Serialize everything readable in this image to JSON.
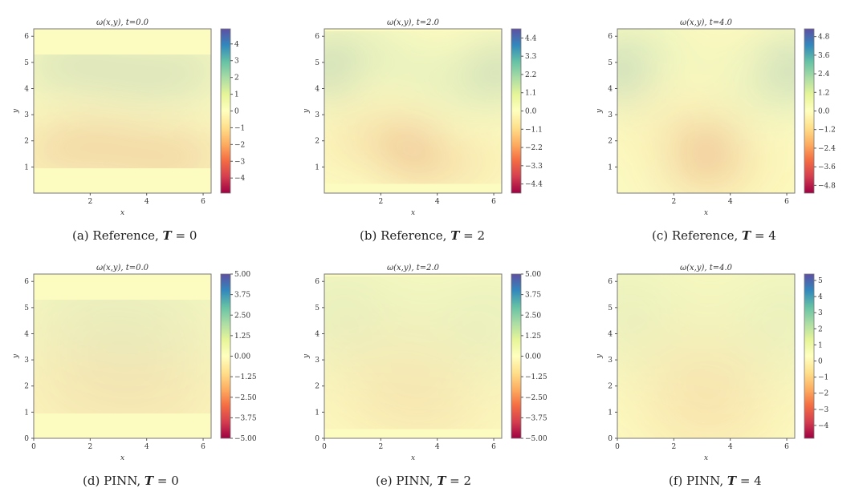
{
  "chart_data": [
    {
      "id": "a",
      "type": "heatmap",
      "title": "ω(x,y),   t=0.0",
      "xlabel": "x",
      "ylabel": "y",
      "xticks": [
        "2",
        "4",
        "6"
      ],
      "yticks": [
        "1",
        "2",
        "3",
        "4",
        "5",
        "6"
      ],
      "xlim": [
        0,
        6.283
      ],
      "ylim": [
        0,
        6.283
      ],
      "colorbar": {
        "range": [
          -4.9,
          4.9
        ],
        "ticks": [
          "4",
          "3",
          "2",
          "1",
          "0",
          "−1",
          "−2",
          "−3",
          "−4"
        ],
        "values": [
          4,
          3,
          2,
          1,
          0,
          -1,
          -2,
          -3,
          -4
        ]
      },
      "caption": {
        "prefix": "(a) Reference, ",
        "var": "T",
        "suffix": " = 0"
      },
      "time": 0
    },
    {
      "id": "b",
      "type": "heatmap",
      "title": "ω(x,y),   t=2.0",
      "xlabel": "x",
      "ylabel": "y",
      "xticks": [
        "2",
        "4",
        "6"
      ],
      "yticks": [
        "1",
        "2",
        "3",
        "4",
        "5",
        "6"
      ],
      "xlim": [
        0,
        6.283
      ],
      "ylim": [
        0,
        6.283
      ],
      "colorbar": {
        "range": [
          -4.95,
          4.95
        ],
        "ticks": [
          "4.4",
          "3.3",
          "2.2",
          "1.1",
          "0.0",
          "−1.1",
          "−2.2",
          "−3.3",
          "−4.4"
        ],
        "values": [
          4.4,
          3.3,
          2.2,
          1.1,
          0,
          -1.1,
          -2.2,
          -3.3,
          -4.4
        ]
      },
      "caption": {
        "prefix": "(b) Reference, ",
        "var": "T",
        "suffix": " = 2"
      },
      "time": 2
    },
    {
      "id": "c",
      "type": "heatmap",
      "title": "ω(x,y),   t=4.0",
      "xlabel": "x",
      "ylabel": "y",
      "xticks": [
        "2",
        "4",
        "6"
      ],
      "yticks": [
        "1",
        "2",
        "3",
        "4",
        "5",
        "6"
      ],
      "xlim": [
        0,
        6.283
      ],
      "ylim": [
        0,
        6.283
      ],
      "colorbar": {
        "range": [
          -5.3,
          5.3
        ],
        "ticks": [
          "4.8",
          "3.6",
          "2.4",
          "1.2",
          "0.0",
          "−1.2",
          "−2.4",
          "−3.6",
          "−4.8"
        ],
        "values": [
          4.8,
          3.6,
          2.4,
          1.2,
          0,
          -1.2,
          -2.4,
          -3.6,
          -4.8
        ]
      },
      "caption": {
        "prefix": "(c) Reference, ",
        "var": "T",
        "suffix": " = 4"
      },
      "time": 4
    },
    {
      "id": "d",
      "type": "heatmap",
      "title": "ω(x,y),   t=0.0",
      "xlabel": "x",
      "ylabel": "y",
      "xticks": [
        "0",
        "2",
        "4",
        "6"
      ],
      "yticks": [
        "0",
        "1",
        "2",
        "3",
        "4",
        "5",
        "6"
      ],
      "xlim": [
        0,
        6.283
      ],
      "ylim": [
        0,
        6.283
      ],
      "colorbar": {
        "range": [
          -5,
          5
        ],
        "ticks": [
          "5.00",
          "3.75",
          "2.50",
          "1.25",
          "0.00",
          "−1.25",
          "−2.50",
          "−3.75",
          "−5.00"
        ],
        "values": [
          5,
          3.75,
          2.5,
          1.25,
          0,
          -1.25,
          -2.5,
          -3.75,
          -5
        ]
      },
      "caption": {
        "prefix": "(d) PINN, ",
        "var": "T",
        "suffix": " = 0"
      },
      "time": 0
    },
    {
      "id": "e",
      "type": "heatmap",
      "title": "ω(x,y),   t=2.0",
      "xlabel": "x",
      "ylabel": "y",
      "xticks": [
        "0",
        "2",
        "4",
        "6"
      ],
      "yticks": [
        "0",
        "1",
        "2",
        "3",
        "4",
        "5",
        "6"
      ],
      "xlim": [
        0,
        6.283
      ],
      "ylim": [
        0,
        6.283
      ],
      "colorbar": {
        "range": [
          -5,
          5
        ],
        "ticks": [
          "5.00",
          "3.75",
          "2.50",
          "1.25",
          "0.00",
          "−1.25",
          "−2.50",
          "−3.75",
          "−5.00"
        ],
        "values": [
          5,
          3.75,
          2.5,
          1.25,
          0,
          -1.25,
          -2.5,
          -3.75,
          -5
        ]
      },
      "caption": {
        "prefix": "(e) PINN, ",
        "var": "T",
        "suffix": " = 2"
      },
      "time": 2
    },
    {
      "id": "f",
      "type": "heatmap",
      "title": "ω(x,y),   t=4.0",
      "xlabel": "x",
      "ylabel": "y",
      "xticks": [
        "0",
        "2",
        "4",
        "6"
      ],
      "yticks": [
        "0",
        "1",
        "2",
        "3",
        "4",
        "5",
        "6"
      ],
      "xlim": [
        0,
        6.283
      ],
      "ylim": [
        0,
        6.283
      ],
      "colorbar": {
        "range": [
          -4.8,
          5.4
        ],
        "ticks": [
          "5",
          "4",
          "3",
          "2",
          "1",
          "0",
          "−1",
          "−2",
          "−3",
          "−4"
        ],
        "values": [
          5,
          4,
          3,
          2,
          1,
          0,
          -1,
          -2,
          -3,
          -4
        ]
      },
      "caption": {
        "prefix": "(f) PINN, ",
        "var": "T",
        "suffix": " = 4"
      },
      "time": 4
    }
  ],
  "colors": {
    "background": "#fcfbc0",
    "red": "#9e0142",
    "orange": "#f46d43",
    "blue": "#3288bd",
    "purple": "#5e4fa2"
  }
}
